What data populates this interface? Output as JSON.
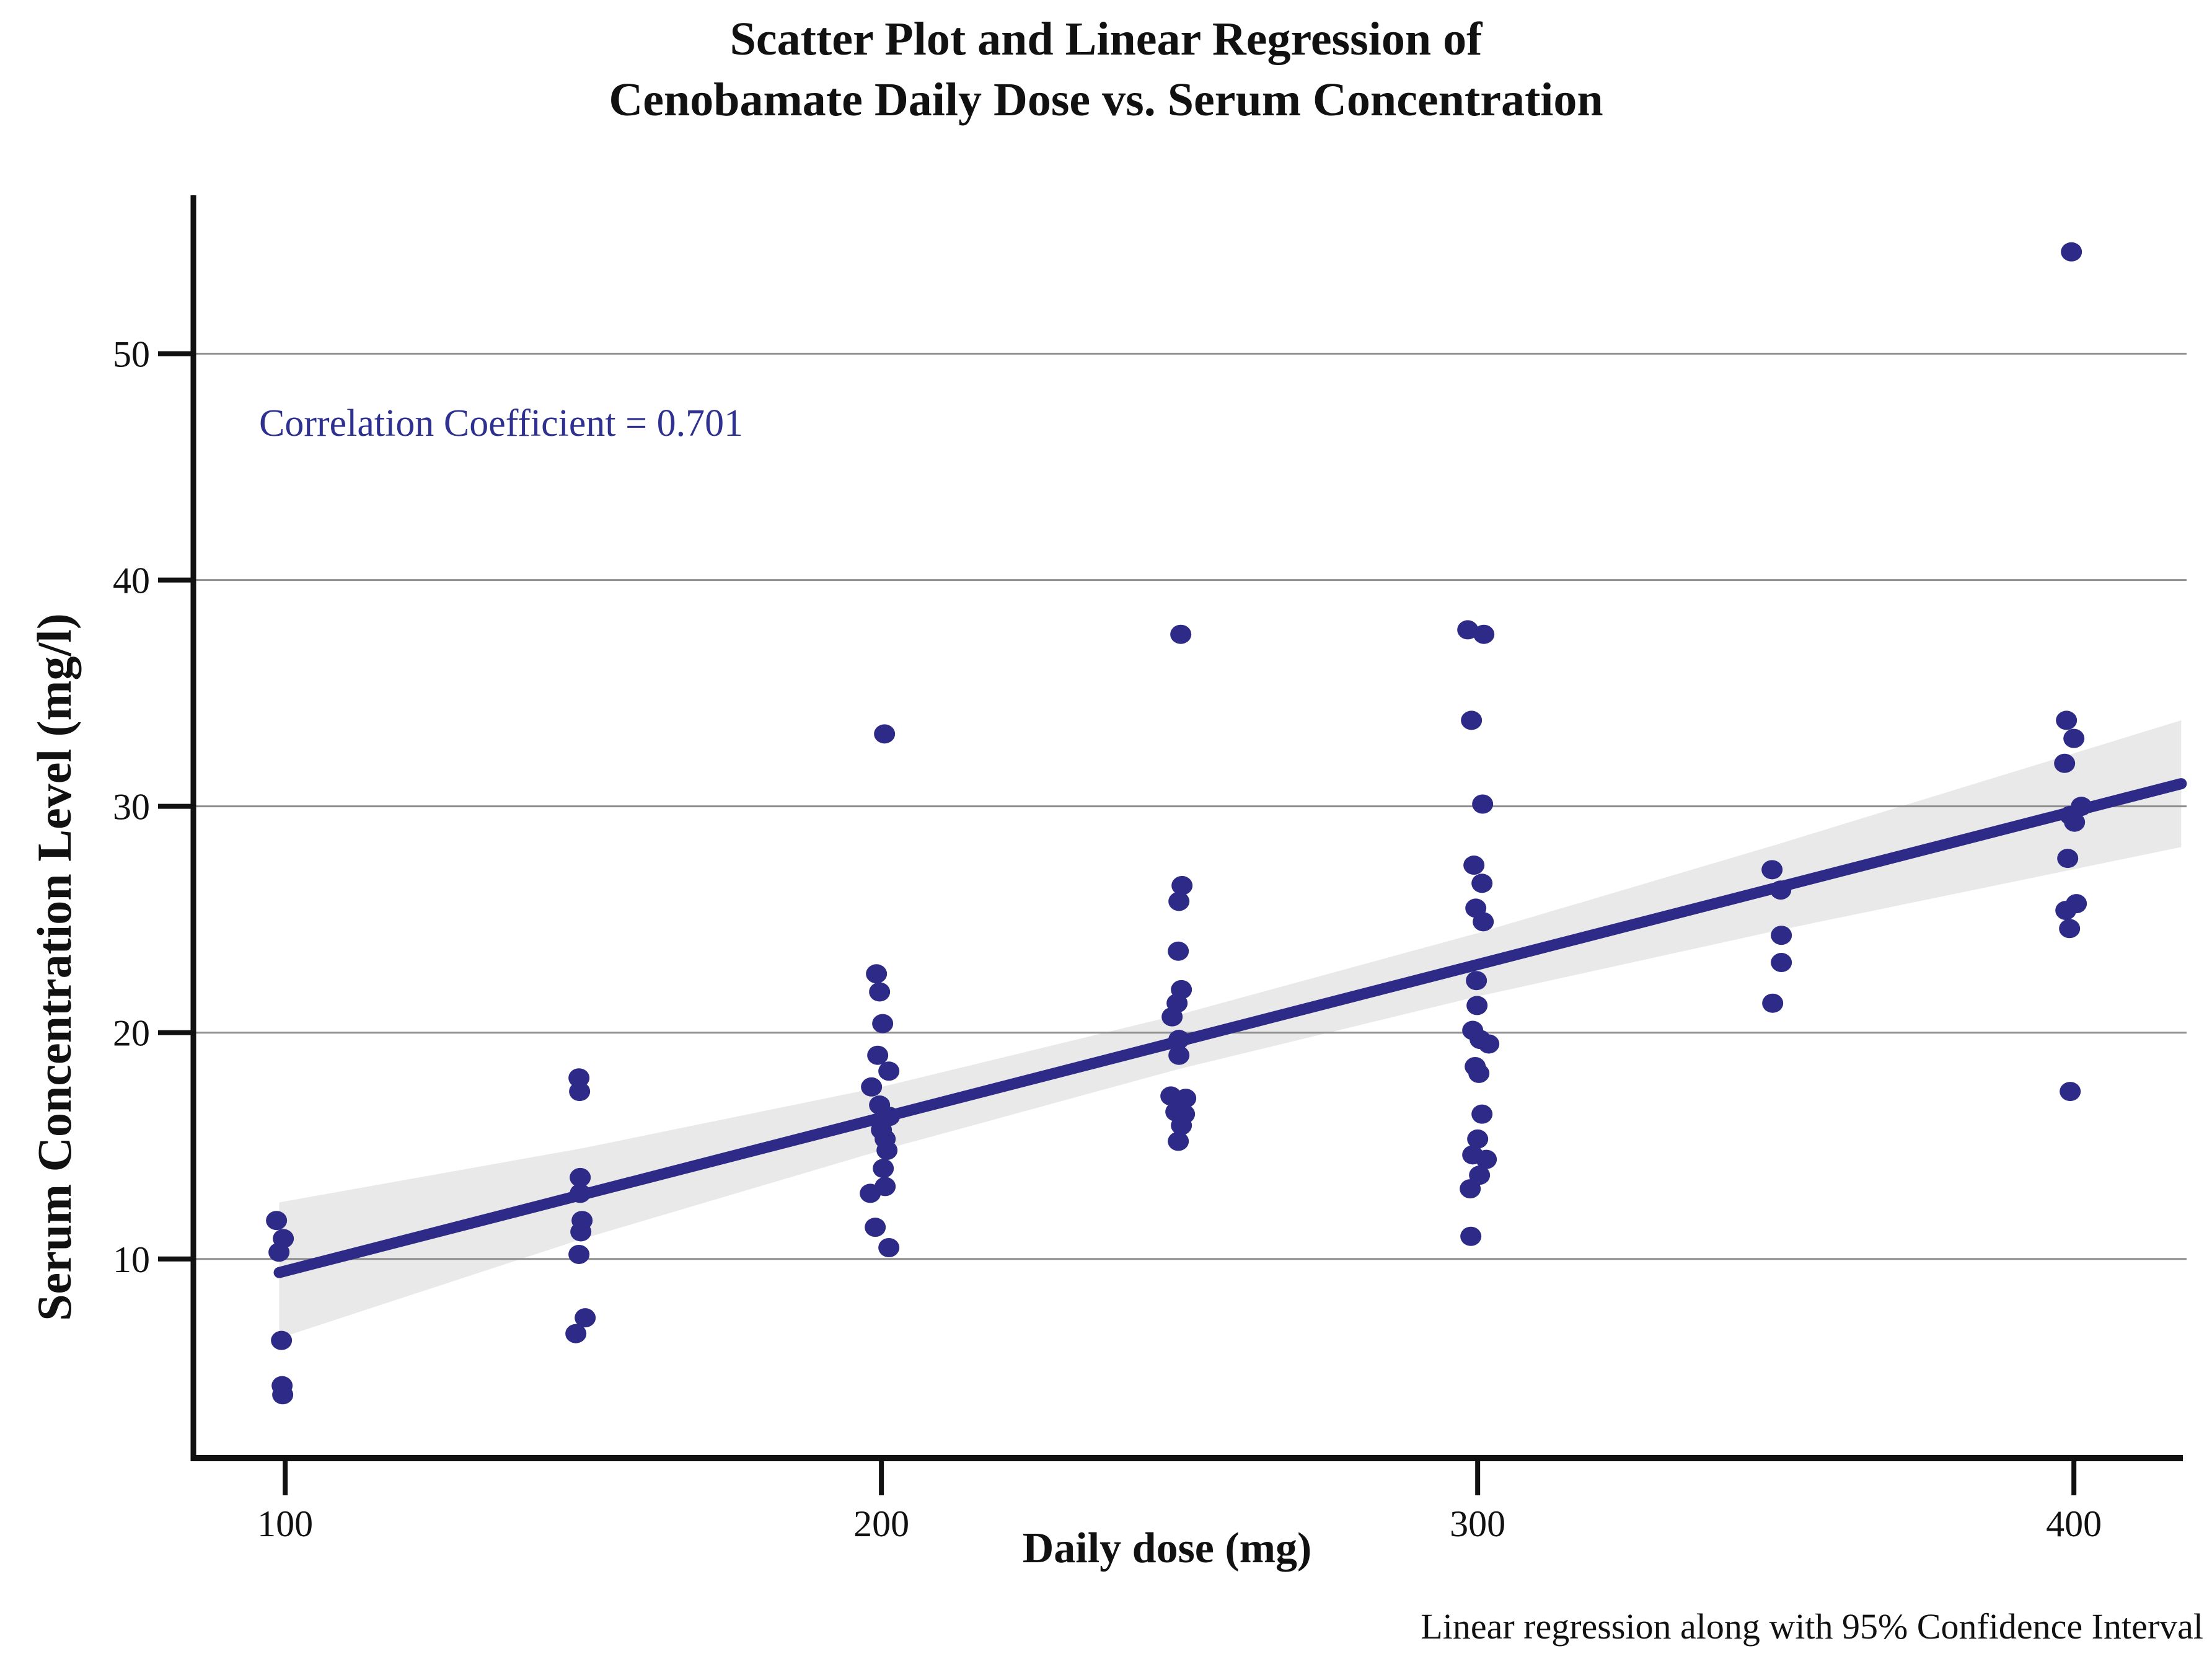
{
  "title": {
    "line1": "Scatter Plot and Linear Regression of",
    "line2": "Cenobamate Daily Dose vs. Serum Concentration"
  },
  "annotation": {
    "correlation_text": "Correlation Coefficient = 0.701"
  },
  "caption": "Linear regression along with 95% Confidence Interval",
  "colors": {
    "point": "#2e2a87",
    "regression_line": "#2e2a87",
    "ci_band": "#e9e9e9",
    "grid": "#8f8f8f",
    "axis": "#111111",
    "annotation_text": "#2f3191",
    "tick_text": "#111111"
  },
  "chart_data": {
    "type": "scatter",
    "title": "Scatter Plot and Linear Regression of Cenobamate Daily Dose vs. Serum Concentration",
    "xlabel": "Daily dose (mg)",
    "ylabel": "Serum Concentration Level (mg/l)",
    "x_ticks": [
      100,
      200,
      300,
      400
    ],
    "y_ticks": [
      10,
      20,
      30,
      40,
      50
    ],
    "xlim": [
      84.6,
      418.9
    ],
    "ylim": [
      1.2,
      57.0
    ],
    "grid": "horizontal",
    "legend": "none",
    "correlation_coefficient": 0.701,
    "regression": {
      "x1": 99,
      "y1": 9.4,
      "x2": 418,
      "y2": 31.0
    },
    "ci_band": [
      {
        "x": 99,
        "top": 12.5,
        "bottom": 6.5
      },
      {
        "x": 150,
        "top": 14.9,
        "bottom": 10.9
      },
      {
        "x": 200,
        "top": 17.6,
        "bottom": 14.8
      },
      {
        "x": 250,
        "top": 20.8,
        "bottom": 18.4
      },
      {
        "x": 300,
        "top": 24.4,
        "bottom": 21.6
      },
      {
        "x": 350,
        "top": 28.3,
        "bottom": 24.5
      },
      {
        "x": 418,
        "top": 33.8,
        "bottom": 28.2
      }
    ],
    "points": [
      [
        100,
        11.7,
        -14
      ],
      [
        100,
        10.9,
        -3
      ],
      [
        100,
        10.3,
        -10
      ],
      [
        100,
        6.4,
        -6
      ],
      [
        100,
        4.4,
        -5
      ],
      [
        100,
        4.0,
        -4
      ],
      [
        150,
        18.0,
        -7
      ],
      [
        150,
        17.4,
        -6
      ],
      [
        150,
        13.6,
        -5
      ],
      [
        150,
        12.9,
        -5
      ],
      [
        150,
        11.7,
        -2
      ],
      [
        150,
        11.2,
        -4
      ],
      [
        150,
        10.2,
        -7
      ],
      [
        150,
        7.4,
        3
      ],
      [
        150,
        6.7,
        -12
      ],
      [
        200,
        33.2,
        5
      ],
      [
        200,
        22.6,
        -8
      ],
      [
        200,
        21.8,
        -3
      ],
      [
        200,
        20.4,
        2
      ],
      [
        200,
        19.0,
        -6
      ],
      [
        200,
        18.3,
        12
      ],
      [
        200,
        17.6,
        -16
      ],
      [
        200,
        16.8,
        -3
      ],
      [
        200,
        16.3,
        13
      ],
      [
        200,
        15.7,
        0
      ],
      [
        200,
        15.3,
        6
      ],
      [
        200,
        14.8,
        9
      ],
      [
        200,
        14.0,
        3
      ],
      [
        200,
        13.2,
        6
      ],
      [
        200,
        12.9,
        -18
      ],
      [
        200,
        11.4,
        -10
      ],
      [
        200,
        10.5,
        12
      ],
      [
        250,
        37.6,
        2
      ],
      [
        250,
        26.5,
        4
      ],
      [
        250,
        25.8,
        -1
      ],
      [
        250,
        23.6,
        -2
      ],
      [
        250,
        21.9,
        3
      ],
      [
        250,
        21.3,
        -4
      ],
      [
        250,
        20.7,
        -12
      ],
      [
        250,
        19.7,
        -1
      ],
      [
        250,
        19.0,
        -1
      ],
      [
        250,
        17.2,
        -14
      ],
      [
        250,
        17.1,
        10
      ],
      [
        250,
        16.5,
        -6
      ],
      [
        250,
        16.4,
        8
      ],
      [
        250,
        15.9,
        3
      ],
      [
        250,
        15.2,
        -2
      ],
      [
        300,
        37.8,
        -16
      ],
      [
        300,
        37.6,
        10
      ],
      [
        300,
        33.8,
        -10
      ],
      [
        300,
        30.1,
        8
      ],
      [
        300,
        27.4,
        -6
      ],
      [
        300,
        26.6,
        7
      ],
      [
        300,
        25.5,
        -3
      ],
      [
        300,
        24.9,
        9
      ],
      [
        300,
        22.3,
        -2
      ],
      [
        300,
        21.2,
        -1
      ],
      [
        300,
        20.1,
        -8
      ],
      [
        300,
        19.7,
        4
      ],
      [
        300,
        19.5,
        18
      ],
      [
        300,
        18.5,
        -4
      ],
      [
        300,
        18.2,
        2
      ],
      [
        300,
        16.4,
        7
      ],
      [
        300,
        15.3,
        0
      ],
      [
        300,
        14.6,
        -8
      ],
      [
        300,
        14.4,
        14
      ],
      [
        300,
        13.7,
        3
      ],
      [
        300,
        13.1,
        -12
      ],
      [
        300,
        11.0,
        -11
      ],
      [
        350,
        27.2,
        -6
      ],
      [
        350,
        26.3,
        8
      ],
      [
        350,
        24.3,
        9
      ],
      [
        350,
        23.1,
        9
      ],
      [
        350,
        21.3,
        -5
      ],
      [
        400,
        54.5,
        -4
      ],
      [
        400,
        33.8,
        -12
      ],
      [
        400,
        33.0,
        0
      ],
      [
        400,
        31.9,
        -15
      ],
      [
        400,
        30.0,
        12
      ],
      [
        400,
        29.6,
        -6
      ],
      [
        400,
        29.3,
        1
      ],
      [
        400,
        27.7,
        -10
      ],
      [
        400,
        25.7,
        4
      ],
      [
        400,
        25.4,
        -13
      ],
      [
        400,
        24.6,
        -7
      ],
      [
        400,
        17.4,
        -6
      ]
    ]
  }
}
